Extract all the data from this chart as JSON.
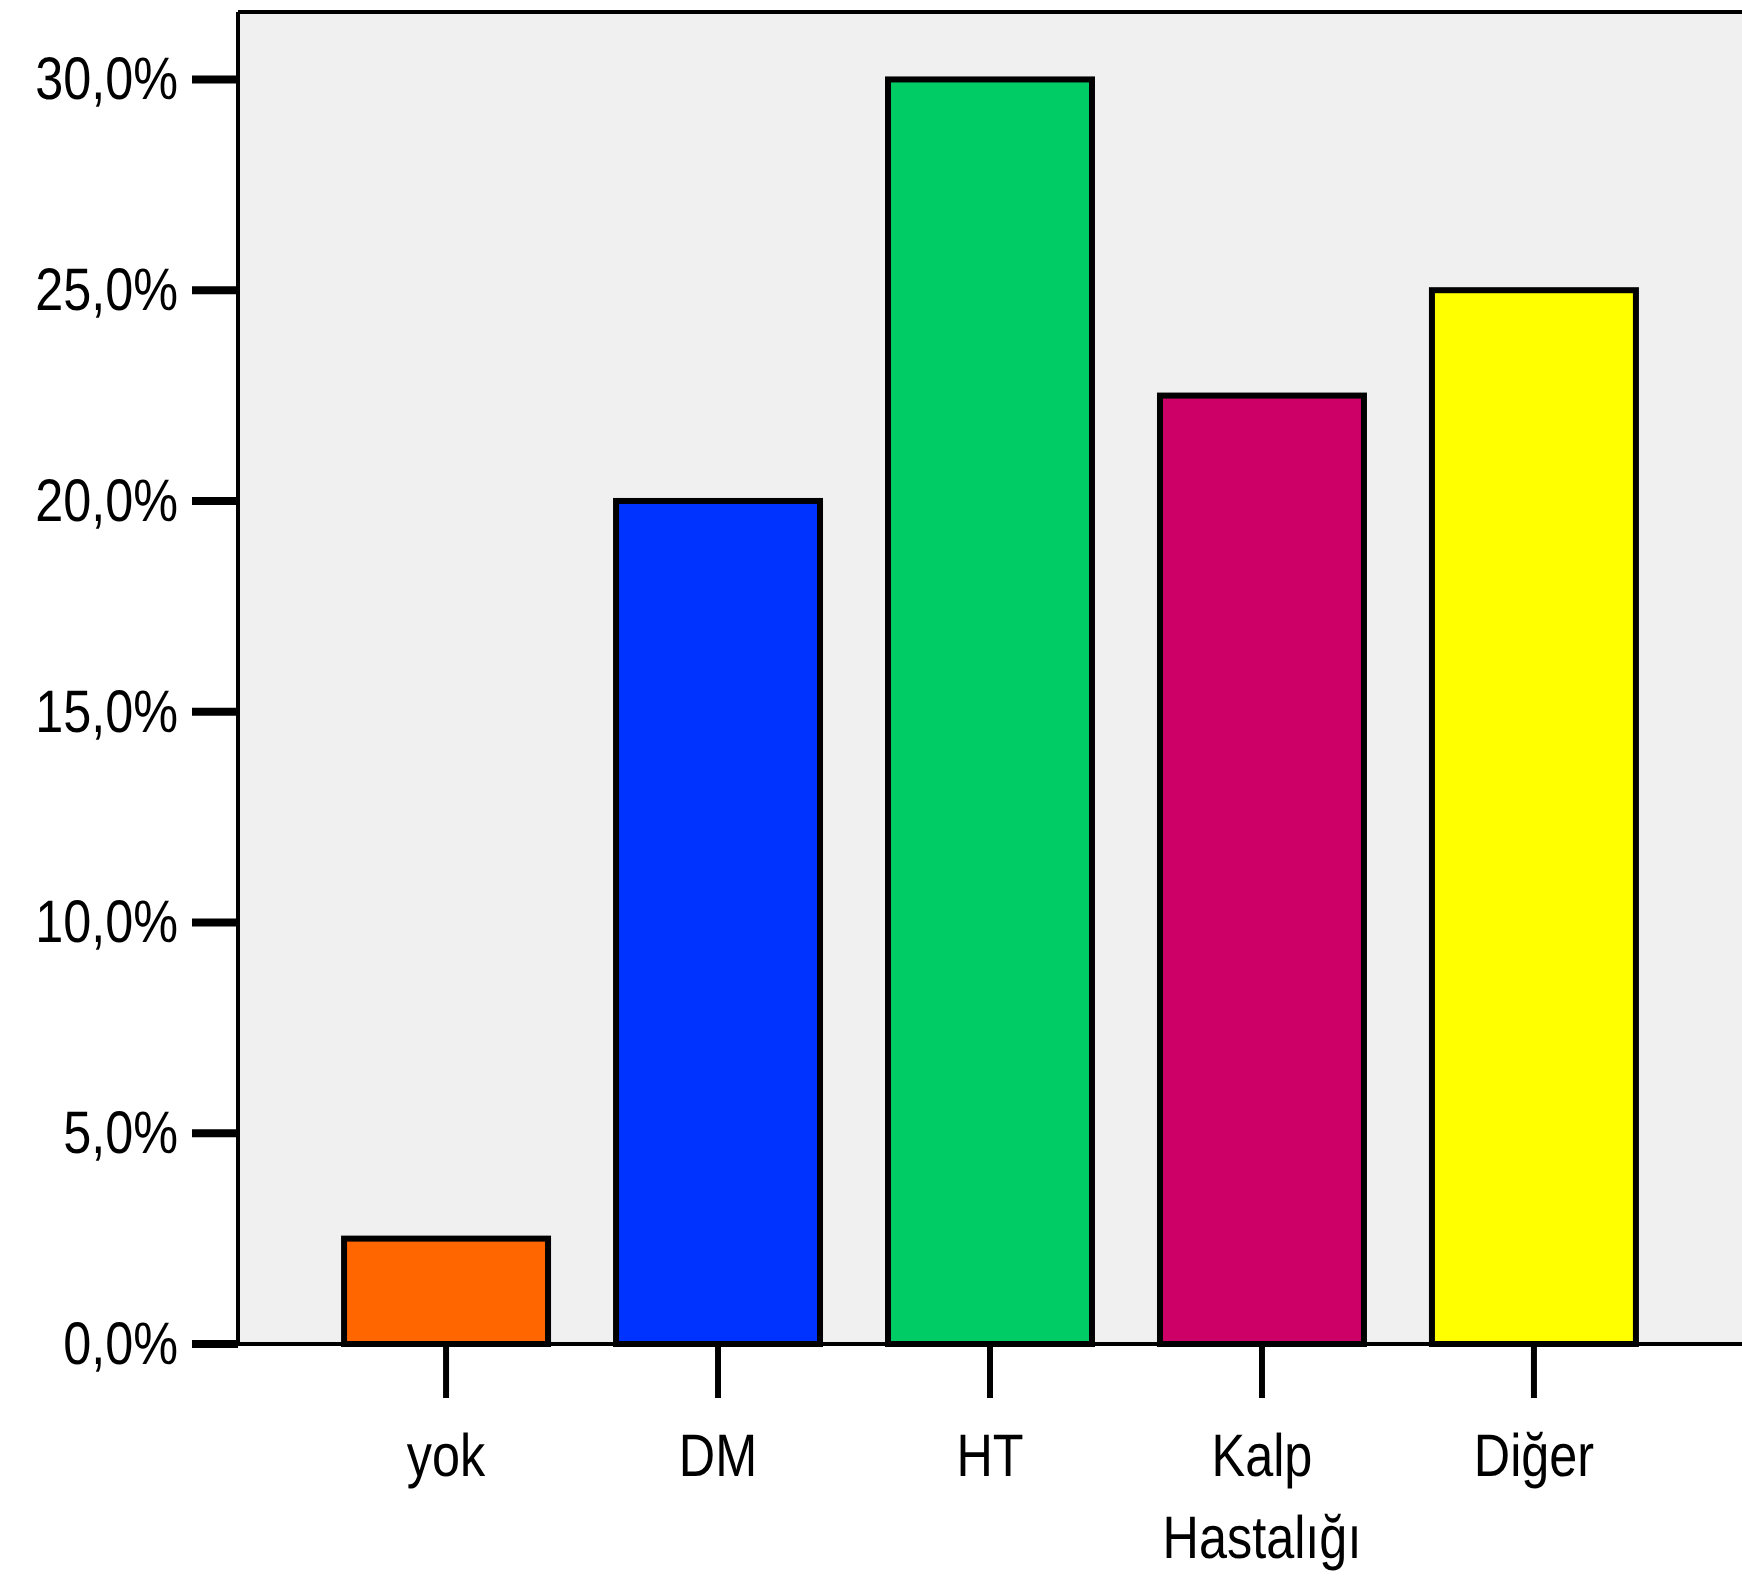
{
  "chart_data": {
    "type": "bar",
    "categories": [
      "yok",
      "DM",
      "HT",
      "Kalp Hastalığı",
      "Diğer"
    ],
    "values": [
      2.5,
      20,
      30,
      22.5,
      25
    ],
    "colors": [
      "#ff6600",
      "#0033ff",
      "#00cc66",
      "#cc0066",
      "#ffff00"
    ],
    "ylim": [
      0,
      31.6
    ],
    "yticks": [
      {
        "value": 0,
        "label": "0,0%"
      },
      {
        "value": 5,
        "label": "5,0%"
      },
      {
        "value": 10,
        "label": "10,0%"
      },
      {
        "value": 15,
        "label": "15,0%"
      },
      {
        "value": 20,
        "label": "20,0%"
      },
      {
        "value": 25,
        "label": "25,0%"
      },
      {
        "value": 30,
        "label": "30,0%"
      }
    ]
  }
}
